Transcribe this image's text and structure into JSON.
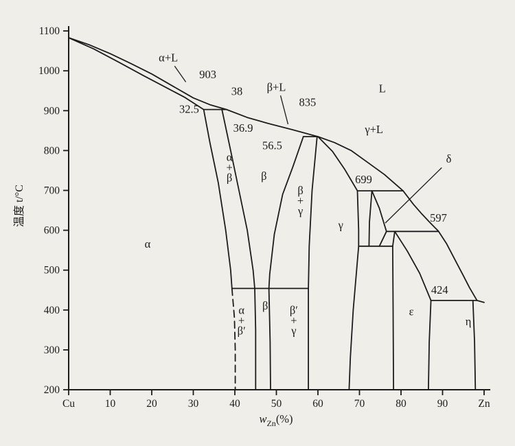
{
  "figure": {
    "background": "#efeee9",
    "ink": "#1c1c1c"
  },
  "chart_data": {
    "type": "line",
    "xlabel": "w_Zn(%)",
    "xlabel_parts": {
      "main": "w",
      "sub": "Zn",
      "tail": "(%)"
    },
    "ylabel": "温度 t/°C",
    "xlim": [
      0,
      100
    ],
    "ylim": [
      200,
      1100
    ],
    "grid": false,
    "x_ticks": [
      0,
      10,
      20,
      30,
      40,
      50,
      60,
      70,
      80,
      90,
      100
    ],
    "x_tick_labels": [
      "Cu",
      "10",
      "20",
      "30",
      "40",
      "50",
      "60",
      "70",
      "80",
      "90",
      "Zn"
    ],
    "y_ticks": [
      200,
      300,
      400,
      500,
      600,
      700,
      800,
      900,
      1000,
      1100
    ],
    "y_tick_labels": [
      "200",
      "300",
      "400",
      "500",
      "600",
      "700",
      "800",
      "900",
      "1000",
      "1100"
    ],
    "boundaries": [
      {
        "name": "liquidus",
        "dashed": false,
        "points": [
          [
            0,
            1083
          ],
          [
            5,
            1065
          ],
          [
            10,
            1043
          ],
          [
            15,
            1018
          ],
          [
            20,
            992
          ],
          [
            25,
            962
          ],
          [
            30,
            932
          ],
          [
            34,
            915
          ],
          [
            38,
            903
          ],
          [
            43,
            883
          ],
          [
            48,
            868
          ],
          [
            54,
            852
          ],
          [
            60,
            835
          ],
          [
            64,
            820
          ],
          [
            68,
            800
          ],
          [
            72,
            770
          ],
          [
            76,
            740
          ],
          [
            80.5,
            699
          ],
          [
            83,
            665
          ],
          [
            85,
            641
          ],
          [
            87,
            619
          ],
          [
            89,
            598
          ],
          [
            91,
            566
          ],
          [
            93,
            526
          ],
          [
            95,
            486
          ],
          [
            96.5,
            456
          ],
          [
            98.3,
            424
          ],
          [
            100,
            419
          ]
        ]
      },
      {
        "name": "alpha-solidus",
        "dashed": false,
        "points": [
          [
            0,
            1083
          ],
          [
            6,
            1055
          ],
          [
            12,
            1022
          ],
          [
            18,
            988
          ],
          [
            24,
            955
          ],
          [
            28,
            933
          ],
          [
            32.5,
            903
          ]
        ]
      },
      {
        "name": "peritectic-903-tie",
        "dashed": false,
        "points": [
          [
            32.5,
            903
          ],
          [
            38,
            903
          ]
        ]
      },
      {
        "name": "alpha-solvus",
        "dashed": false,
        "points": [
          [
            32.5,
            903
          ],
          [
            34,
            820
          ],
          [
            36,
            720
          ],
          [
            37.8,
            600
          ],
          [
            39,
            500
          ],
          [
            39.3,
            454
          ]
        ]
      },
      {
        "name": "alpha-solvus-dashed",
        "dashed": true,
        "points": [
          [
            39.3,
            454
          ],
          [
            39.9,
            380
          ],
          [
            40.1,
            300
          ],
          [
            40.1,
            200
          ]
        ]
      },
      {
        "name": "alpha-beta-beta-boundary",
        "dashed": false,
        "points": [
          [
            36.9,
            903
          ],
          [
            39,
            800
          ],
          [
            41,
            700
          ],
          [
            43,
            600
          ],
          [
            44.4,
            500
          ],
          [
            44.8,
            454
          ]
        ]
      },
      {
        "name": "beta-prime-left-boundary",
        "dashed": false,
        "points": [
          [
            44.8,
            454
          ],
          [
            45,
            350
          ],
          [
            45,
            200
          ]
        ]
      },
      {
        "name": "beta-beta-gamma-boundary",
        "dashed": false,
        "points": [
          [
            56.5,
            835
          ],
          [
            54,
            760
          ],
          [
            51.5,
            690
          ],
          [
            49.5,
            590
          ],
          [
            48.4,
            490
          ],
          [
            48.2,
            454
          ]
        ]
      },
      {
        "name": "beta-prime-gamma-left-boundary",
        "dashed": false,
        "points": [
          [
            48.2,
            454
          ],
          [
            48.5,
            320
          ],
          [
            48.6,
            200
          ]
        ]
      },
      {
        "name": "beta-order-line",
        "dashed": false,
        "points": [
          [
            39.3,
            454
          ],
          [
            57.7,
            454
          ]
        ]
      },
      {
        "name": "gamma-left-boundary",
        "dashed": false,
        "points": [
          [
            59.8,
            835
          ],
          [
            58.6,
            700
          ],
          [
            57.9,
            560
          ],
          [
            57.7,
            454
          ],
          [
            57.7,
            200
          ]
        ]
      },
      {
        "name": "peritectic-835-tie",
        "dashed": false,
        "points": [
          [
            56.5,
            835
          ],
          [
            60,
            835
          ]
        ]
      },
      {
        "name": "gamma-liquid-boundary",
        "dashed": false,
        "points": [
          [
            60,
            835
          ],
          [
            63.5,
            798
          ],
          [
            66.5,
            752
          ],
          [
            69.5,
            699
          ]
        ]
      },
      {
        "name": "peritectic-699-tie",
        "dashed": false,
        "points": [
          [
            69.5,
            699
          ],
          [
            80.5,
            699
          ]
        ]
      },
      {
        "name": "gamma-right-boundary",
        "dashed": false,
        "points": [
          [
            69.5,
            699
          ],
          [
            69.8,
            600
          ],
          [
            69.8,
            560
          ]
        ]
      },
      {
        "name": "gamma-right-lower-boundary",
        "dashed": false,
        "points": [
          [
            69.8,
            560
          ],
          [
            68.5,
            400
          ],
          [
            67.8,
            280
          ],
          [
            67.5,
            200
          ]
        ]
      },
      {
        "name": "delta-left-boundary",
        "dashed": false,
        "points": [
          [
            73,
            699
          ],
          [
            72.4,
            620
          ],
          [
            72.3,
            560
          ]
        ]
      },
      {
        "name": "delta-right-boundary",
        "dashed": false,
        "points": [
          [
            73,
            699
          ],
          [
            74.8,
            655
          ],
          [
            76.5,
            597
          ]
        ]
      },
      {
        "name": "delta-epsilon-boundary",
        "dashed": false,
        "points": [
          [
            76.5,
            597
          ],
          [
            74.8,
            560
          ]
        ]
      },
      {
        "name": "peritectic-597-tie",
        "dashed": false,
        "points": [
          [
            76.5,
            597
          ],
          [
            89,
            597
          ]
        ]
      },
      {
        "name": "eutectoid-560-tie",
        "dashed": false,
        "points": [
          [
            69.8,
            560
          ],
          [
            78,
            560
          ]
        ]
      },
      {
        "name": "epsilon-left-top-boundary",
        "dashed": false,
        "points": [
          [
            78.5,
            597
          ],
          [
            78,
            560
          ]
        ]
      },
      {
        "name": "epsilon-left-boundary",
        "dashed": false,
        "points": [
          [
            78,
            560
          ],
          [
            78.1,
            400
          ],
          [
            78.2,
            200
          ]
        ]
      },
      {
        "name": "epsilon-liquid-boundary",
        "dashed": false,
        "points": [
          [
            78.5,
            597
          ],
          [
            81.5,
            548
          ],
          [
            84.5,
            492
          ],
          [
            87.2,
            424
          ]
        ]
      },
      {
        "name": "epsilon-right-boundary",
        "dashed": false,
        "points": [
          [
            87.2,
            424
          ],
          [
            86.8,
            320
          ],
          [
            86.6,
            200
          ]
        ]
      },
      {
        "name": "peritectic-424-tie",
        "dashed": false,
        "points": [
          [
            87.2,
            424
          ],
          [
            98.3,
            424
          ]
        ]
      },
      {
        "name": "eta-left-boundary",
        "dashed": false,
        "points": [
          [
            97.3,
            424
          ],
          [
            97.7,
            320
          ],
          [
            97.9,
            200
          ]
        ]
      }
    ],
    "leader_lines": [
      {
        "name": "alpha-l-leader",
        "from": [
          25.5,
          1012
        ],
        "to": [
          28.2,
          972
        ]
      },
      {
        "name": "beta-l-leader",
        "from": [
          51,
          938
        ],
        "to": [
          52.8,
          866
        ]
      },
      {
        "name": "delta-leader",
        "from": [
          89.8,
          757
        ],
        "to": [
          76.2,
          618
        ]
      }
    ],
    "labels": [
      {
        "name": "alpha-l-region-label",
        "text": "α+L",
        "w": 24,
        "T": 1032
      },
      {
        "name": "temp-903-label",
        "text": "903",
        "w": 33.5,
        "T": 990
      },
      {
        "name": "comp-38-label",
        "text": "38",
        "w": 40.5,
        "T": 948
      },
      {
        "name": "beta-l-region-label",
        "text": "β+L",
        "w": 50,
        "T": 958
      },
      {
        "name": "liquid-region-label",
        "text": "L",
        "w": 75.5,
        "T": 955
      },
      {
        "name": "comp-32-5-label",
        "text": "32.5",
        "w": 29,
        "T": 903
      },
      {
        "name": "comp-36-9-label",
        "text": "36.9",
        "w": 42,
        "T": 856
      },
      {
        "name": "temp-835-label",
        "text": "835",
        "w": 57.5,
        "T": 920
      },
      {
        "name": "gamma-l-region-label",
        "text": "γ+L",
        "w": 73.5,
        "T": 852
      },
      {
        "name": "comp-56-5-label",
        "text": "56.5",
        "w": 49,
        "T": 812
      },
      {
        "name": "alpha-beta-region-label",
        "lines": [
          "α",
          "+",
          "β"
        ],
        "w": 38.7,
        "T": 752
      },
      {
        "name": "beta-region-label",
        "text": "β",
        "w": 47,
        "T": 735
      },
      {
        "name": "beta-gamma-region-label",
        "lines": [
          "β",
          "+",
          "γ"
        ],
        "w": 55.8,
        "T": 668
      },
      {
        "name": "delta-region-label",
        "text": "δ",
        "w": 91.5,
        "T": 778
      },
      {
        "name": "temp-699-label",
        "text": "699",
        "w": 71,
        "T": 727
      },
      {
        "name": "gamma-region-label",
        "text": "γ",
        "w": 65.5,
        "T": 612
      },
      {
        "name": "temp-597-label",
        "text": "597",
        "w": 89,
        "T": 630
      },
      {
        "name": "alpha-region-label",
        "text": "α",
        "w": 19,
        "T": 565
      },
      {
        "name": "epsilon-region-label",
        "text": "ε",
        "w": 82.5,
        "T": 395
      },
      {
        "name": "temp-424-label",
        "text": "424",
        "w": 89.3,
        "T": 450
      },
      {
        "name": "eta-region-label",
        "text": "η",
        "w": 96.2,
        "T": 370
      },
      {
        "name": "beta-prime-region-label",
        "text": "β′",
        "w": 47.6,
        "T": 410
      },
      {
        "name": "alpha-beta-prime-region-label",
        "lines": [
          "α",
          "+",
          "β′"
        ],
        "w": 41.6,
        "T": 368
      },
      {
        "name": "beta-prime-gamma-region-label",
        "lines": [
          "β′",
          "+",
          "γ"
        ],
        "w": 54.2,
        "T": 368
      }
    ]
  }
}
